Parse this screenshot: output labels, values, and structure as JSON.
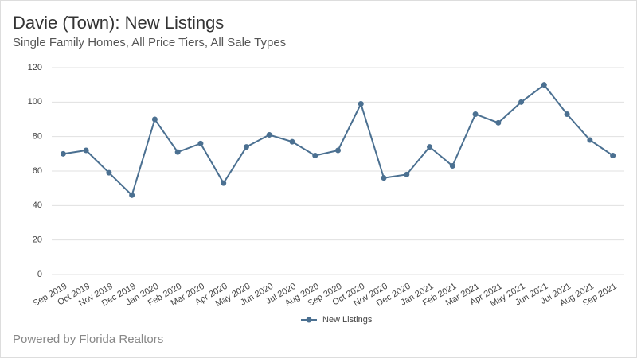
{
  "chart_data": {
    "type": "line",
    "title": "Davie (Town): New Listings",
    "subtitle": "Single Family Homes, All Price Tiers, All Sale Types",
    "footer": "Powered by Florida Realtors",
    "categories": [
      "Sep 2019",
      "Oct 2019",
      "Nov 2019",
      "Dec 2019",
      "Jan 2020",
      "Feb 2020",
      "Mar 2020",
      "Apr 2020",
      "May 2020",
      "Jun 2020",
      "Jul 2020",
      "Aug 2020",
      "Sep 2020",
      "Oct 2020",
      "Nov 2020",
      "Dec 2020",
      "Jan 2021",
      "Feb 2021",
      "Mar 2021",
      "Apr 2021",
      "May 2021",
      "Jun 2021",
      "Jul 2021",
      "Aug 2021",
      "Sep 2021"
    ],
    "series": [
      {
        "name": "New Listings",
        "color": "#4b7091",
        "values": [
          70,
          72,
          59,
          46,
          90,
          71,
          76,
          53,
          74,
          81,
          77,
          69,
          72,
          99,
          56,
          58,
          74,
          63,
          93,
          88,
          100,
          110,
          93,
          78,
          69
        ]
      }
    ],
    "ylim": [
      0,
      120
    ],
    "yticks": [
      0,
      20,
      40,
      60,
      80,
      100,
      120
    ],
    "grid": true,
    "legend": "bottom"
  }
}
